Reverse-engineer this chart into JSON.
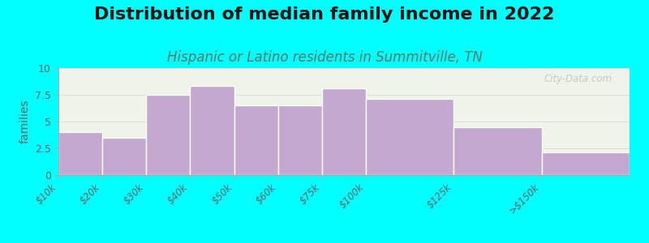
{
  "title": "Distribution of median family income in 2022",
  "subtitle": "Hispanic or Latino residents in Summitville, TN",
  "bin_edges": [
    0,
    1,
    2,
    3,
    4,
    5,
    6,
    7,
    9,
    11,
    13
  ],
  "bin_labels": [
    "$10k",
    "$20k",
    "$30k",
    "$40k",
    "$50k",
    "$60k",
    "$75k",
    "$100k",
    "$125k",
    ">$150k"
  ],
  "values": [
    4.0,
    3.5,
    7.5,
    8.3,
    6.5,
    6.5,
    8.1,
    7.1,
    4.5,
    2.1
  ],
  "bar_color": "#C4A8D0",
  "bar_edge_color": "#FFFFFF",
  "background_color": "#00FFFF",
  "plot_bg_top": "#EEF5E8",
  "plot_bg_bottom": "#F8FBF4",
  "ylabel": "families",
  "ylim": [
    0,
    10
  ],
  "yticks": [
    0,
    2.5,
    5,
    7.5,
    10
  ],
  "title_fontsize": 16,
  "subtitle_fontsize": 12,
  "subtitle_color": "#5A7A6A",
  "watermark": "City-Data.com",
  "watermark_color": "#BBBBBB",
  "tick_label_color": "#666666",
  "grid_color": "#DDDDDD"
}
